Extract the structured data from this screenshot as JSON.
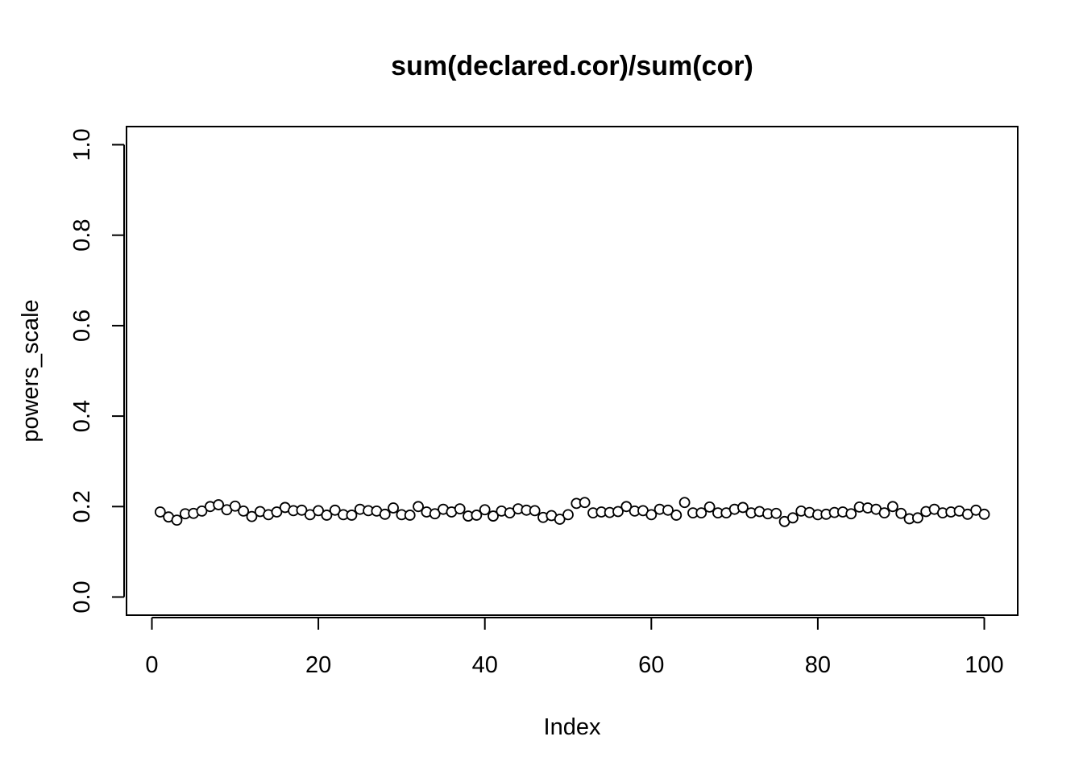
{
  "chart_data": {
    "type": "scatter",
    "title": "sum(declared.cor)/sum(cor)",
    "xlabel": "Index",
    "ylabel": "powers_scale",
    "xlim": [
      0,
      100
    ],
    "ylim": [
      0,
      1
    ],
    "x_ticks": [
      0,
      20,
      40,
      60,
      80,
      100
    ],
    "y_ticks": [
      0.0,
      0.2,
      0.4,
      0.6,
      0.8,
      1.0
    ],
    "x_tick_labels": [
      "0",
      "20",
      "40",
      "60",
      "80",
      "100"
    ],
    "y_tick_labels": [
      "0.0",
      "0.2",
      "0.4",
      "0.6",
      "0.8",
      "1.0"
    ],
    "grid": false,
    "point_style": "open-circle",
    "series": [
      {
        "x": [
          1,
          2,
          3,
          4,
          5,
          6,
          7,
          8,
          9,
          10,
          11,
          12,
          13,
          14,
          15,
          16,
          17,
          18,
          19,
          20,
          21,
          22,
          23,
          24,
          25,
          26,
          27,
          28,
          29,
          30,
          31,
          32,
          33,
          34,
          35,
          36,
          37,
          38,
          39,
          40,
          41,
          42,
          43,
          44,
          45,
          46,
          47,
          48,
          49,
          50,
          51,
          52,
          53,
          54,
          55,
          56,
          57,
          58,
          59,
          60,
          61,
          62,
          63,
          64,
          65,
          66,
          67,
          68,
          69,
          70,
          71,
          72,
          73,
          74,
          75,
          76,
          77,
          78,
          79,
          80,
          81,
          82,
          83,
          84,
          85,
          86,
          87,
          88,
          89,
          90,
          91,
          92,
          93,
          94,
          95,
          96,
          97,
          98,
          99,
          100
        ],
        "values": [
          0.188,
          0.177,
          0.17,
          0.184,
          0.185,
          0.19,
          0.2,
          0.204,
          0.193,
          0.201,
          0.19,
          0.178,
          0.189,
          0.182,
          0.188,
          0.198,
          0.191,
          0.192,
          0.182,
          0.191,
          0.181,
          0.192,
          0.182,
          0.181,
          0.194,
          0.191,
          0.19,
          0.183,
          0.197,
          0.182,
          0.181,
          0.2,
          0.188,
          0.184,
          0.194,
          0.188,
          0.195,
          0.179,
          0.181,
          0.193,
          0.179,
          0.19,
          0.186,
          0.195,
          0.192,
          0.191,
          0.176,
          0.18,
          0.172,
          0.182,
          0.207,
          0.209,
          0.186,
          0.188,
          0.187,
          0.189,
          0.2,
          0.19,
          0.191,
          0.182,
          0.194,
          0.192,
          0.181,
          0.209,
          0.186,
          0.186,
          0.199,
          0.186,
          0.186,
          0.194,
          0.198,
          0.186,
          0.189,
          0.184,
          0.185,
          0.167,
          0.175,
          0.19,
          0.187,
          0.182,
          0.183,
          0.187,
          0.188,
          0.184,
          0.199,
          0.197,
          0.194,
          0.186,
          0.2,
          0.185,
          0.173,
          0.175,
          0.189,
          0.194,
          0.186,
          0.188,
          0.19,
          0.183,
          0.192,
          0.183
        ]
      }
    ]
  }
}
